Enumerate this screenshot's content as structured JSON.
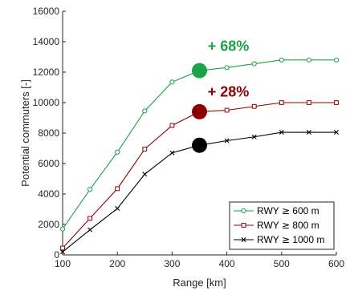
{
  "chart_data": {
    "type": "line",
    "xlabel": "Range [km]",
    "ylabel": "Potential commuters [-]",
    "xlim": [
      100,
      600
    ],
    "ylim": [
      0,
      16000
    ],
    "xticks": [
      "100",
      "200",
      "300",
      "400",
      "500",
      "600"
    ],
    "yticks": [
      "0",
      "2000",
      "4000",
      "6000",
      "8000",
      "10000",
      "12000",
      "14000",
      "16000"
    ],
    "x": [
      100,
      150,
      200,
      250,
      300,
      350,
      400,
      450,
      500,
      550,
      600
    ],
    "series": [
      {
        "name": "RWY ≥ 600 m",
        "legend_prefix": "RWY ",
        "legend_op": "≥",
        "legend_suffix": " 600 m",
        "color": "#1aa347",
        "marker": "circle",
        "values": [
          1700,
          4300,
          6750,
          9450,
          11350,
          12100,
          12300,
          12550,
          12800,
          12800,
          12800
        ]
      },
      {
        "name": "RWY ≥ 800 m",
        "legend_prefix": "RWY ",
        "legend_op": "≥",
        "legend_suffix": " 800 m",
        "color": "#8b0000",
        "marker": "square",
        "values": [
          450,
          2400,
          4350,
          6950,
          8500,
          9400,
          9500,
          9750,
          10000,
          10000,
          10000
        ]
      },
      {
        "name": "RWY ≥ 1000 m",
        "legend_prefix": "RWY ",
        "legend_op": "≥",
        "legend_suffix": " 1000 m",
        "color": "#000000",
        "marker": "x",
        "values": [
          200,
          1650,
          3050,
          5300,
          6700,
          7200,
          7500,
          7750,
          8050,
          8050,
          8050
        ]
      }
    ],
    "highlights": [
      {
        "x": 350,
        "y": 12100,
        "color": "#1aa347"
      },
      {
        "x": 350,
        "y": 9400,
        "color": "#8b0000"
      },
      {
        "x": 350,
        "y": 7200,
        "color": "#000000"
      }
    ],
    "annotations": [
      {
        "text": "+ 68%",
        "x": 365,
        "y": 13400,
        "color": "#1aa347"
      },
      {
        "text": "+ 28%",
        "x": 365,
        "y": 10400,
        "color": "#8b0000"
      }
    ],
    "legend_position": "bottom-right",
    "grid": false
  }
}
